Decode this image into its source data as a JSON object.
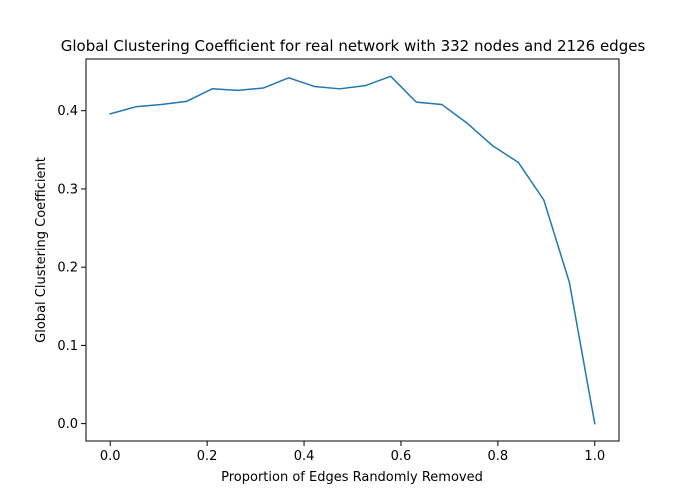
{
  "chart_data": {
    "type": "line",
    "title": "Global Clustering Coefficient for real network with 332 nodes and 2126 edges",
    "xlabel": "Proportion of Edges Randomly Removed",
    "ylabel": "Global Clustering Coefficient",
    "xlim": [
      -0.05,
      1.05
    ],
    "ylim": [
      -0.0222,
      0.4661
    ],
    "xticks": [
      0.0,
      0.2,
      0.4,
      0.6,
      0.8,
      1.0
    ],
    "xtick_labels": [
      "0.0",
      "0.2",
      "0.4",
      "0.6",
      "0.8",
      "1.0"
    ],
    "yticks": [
      0.0,
      0.1,
      0.2,
      0.3,
      0.4
    ],
    "ytick_labels": [
      "0.0",
      "0.1",
      "0.2",
      "0.3",
      "0.4"
    ],
    "grid": false,
    "series": [
      {
        "color": "#1f77b4",
        "x": [
          0.0,
          0.0526,
          0.1053,
          0.1579,
          0.2105,
          0.2632,
          0.3158,
          0.3684,
          0.4211,
          0.4737,
          0.5263,
          0.5789,
          0.6316,
          0.6842,
          0.7368,
          0.7895,
          0.8421,
          0.8947,
          0.9474,
          1.0
        ],
        "y": [
          0.396,
          0.405,
          0.408,
          0.412,
          0.428,
          0.426,
          0.429,
          0.442,
          0.431,
          0.428,
          0.432,
          0.444,
          0.411,
          0.408,
          0.384,
          0.355,
          0.334,
          0.286,
          0.181,
          0.0
        ]
      }
    ]
  }
}
